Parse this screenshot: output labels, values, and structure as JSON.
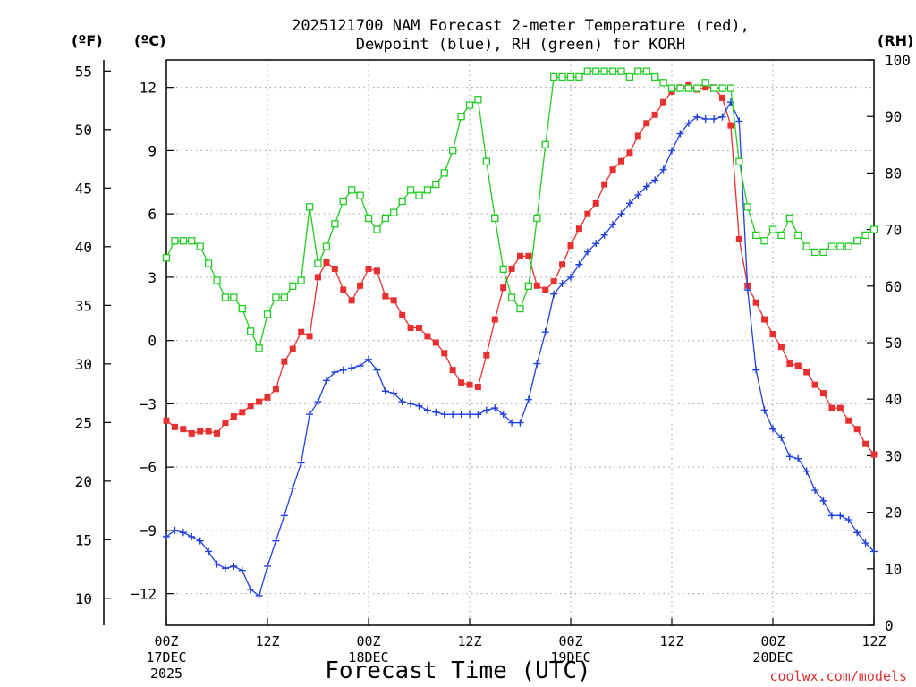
{
  "chart_data": {
    "type": "line",
    "title_line1": "2025121700 NAM Forecast 2-meter Temperature (red),",
    "title_line2": "Dewpoint (blue), RH (green) for KORH",
    "units": {
      "degF": "(ºF)",
      "degC": "(ºC)",
      "rh": "(RH)"
    },
    "xlabel": "Forecast Time (UTC)",
    "credit": "coolwx.com/models",
    "x_hours_range": [
      0,
      84
    ],
    "y_degC_range": [
      -13.5,
      13.3
    ],
    "y_rh_range": [
      0,
      100
    ],
    "y_degF_ticks": [
      "55",
      "50",
      "45",
      "40",
      "35",
      "30",
      "25",
      "20",
      "15",
      "10"
    ],
    "y_degC_ticks": [
      "12",
      "9",
      "6",
      "3",
      "0",
      "−3",
      "−6",
      "−9",
      "−12"
    ],
    "y_rh_ticks": [
      "100",
      "90",
      "80",
      "70",
      "60",
      "50",
      "40",
      "30",
      "20",
      "10",
      "0"
    ],
    "x_ticks": [
      {
        "h": 0,
        "label": "00Z",
        "sub1": "17DEC",
        "sub2": "2025"
      },
      {
        "h": 12,
        "label": "12Z",
        "sub1": "",
        "sub2": ""
      },
      {
        "h": 24,
        "label": "00Z",
        "sub1": "18DEC",
        "sub2": ""
      },
      {
        "h": 36,
        "label": "12Z",
        "sub1": "",
        "sub2": ""
      },
      {
        "h": 48,
        "label": "00Z",
        "sub1": "19DEC",
        "sub2": ""
      },
      {
        "h": 60,
        "label": "12Z",
        "sub1": "",
        "sub2": ""
      },
      {
        "h": 72,
        "label": "00Z",
        "sub1": "20DEC",
        "sub2": ""
      },
      {
        "h": 84,
        "label": "12Z",
        "sub1": "",
        "sub2": ""
      }
    ],
    "x_hours": [
      0,
      1,
      2,
      3,
      4,
      5,
      6,
      7,
      8,
      9,
      10,
      11,
      12,
      13,
      14,
      15,
      16,
      17,
      18,
      19,
      20,
      21,
      22,
      23,
      24,
      25,
      26,
      27,
      28,
      29,
      30,
      31,
      32,
      33,
      34,
      35,
      36,
      37,
      38,
      39,
      40,
      41,
      42,
      43,
      44,
      45,
      46,
      47,
      48,
      49,
      50,
      51,
      52,
      53,
      54,
      55,
      56,
      57,
      58,
      59,
      60,
      61,
      62,
      63,
      64,
      65,
      66,
      67,
      68,
      69,
      70,
      71,
      72,
      73,
      74,
      75,
      76,
      77,
      78,
      79,
      80,
      81,
      82,
      83,
      84
    ],
    "series": [
      {
        "name": "Temperature",
        "color": "#e83030",
        "marker": "filled-square",
        "axis": "degC",
        "values": [
          -3.8,
          -4.1,
          -4.2,
          -4.4,
          -4.3,
          -4.3,
          -4.4,
          -3.9,
          -3.6,
          -3.4,
          -3.1,
          -2.9,
          -2.7,
          -2.3,
          -1.0,
          -0.4,
          0.4,
          0.2,
          3.0,
          3.7,
          3.4,
          2.4,
          1.9,
          2.6,
          3.4,
          3.3,
          2.1,
          1.9,
          1.2,
          0.6,
          0.6,
          0.2,
          -0.1,
          -0.6,
          -1.4,
          -2.0,
          -2.1,
          -2.2,
          -0.7,
          1.0,
          2.5,
          3.4,
          4.0,
          4.0,
          2.6,
          2.4,
          2.8,
          3.6,
          4.5,
          5.3,
          6.0,
          6.5,
          7.4,
          8.1,
          8.5,
          8.9,
          9.7,
          10.3,
          10.7,
          11.3,
          11.8,
          12.0,
          12.1,
          11.9,
          12.0,
          12.0,
          11.5,
          10.2,
          4.8,
          2.6,
          1.8,
          1.0,
          0.3,
          -0.3,
          -1.1,
          -1.2,
          -1.5,
          -2.1,
          -2.5,
          -3.2,
          -3.2,
          -3.8,
          -4.2,
          -4.9,
          -5.4
        ]
      },
      {
        "name": "Dewpoint",
        "color": "#2040e0",
        "marker": "plus",
        "axis": "degC",
        "values": [
          -9.3,
          -9.0,
          -9.1,
          -9.3,
          -9.5,
          -10.0,
          -10.6,
          -10.8,
          -10.7,
          -10.9,
          -11.8,
          -12.1,
          -10.7,
          -9.5,
          -8.3,
          -7.0,
          -5.8,
          -3.5,
          -2.9,
          -1.9,
          -1.5,
          -1.4,
          -1.3,
          -1.2,
          -0.9,
          -1.4,
          -2.4,
          -2.5,
          -2.9,
          -3.0,
          -3.1,
          -3.3,
          -3.4,
          -3.5,
          -3.5,
          -3.5,
          -3.5,
          -3.5,
          -3.3,
          -3.2,
          -3.5,
          -3.9,
          -3.9,
          -2.8,
          -1.1,
          0.4,
          2.2,
          2.7,
          3.0,
          3.6,
          4.2,
          4.6,
          5.0,
          5.5,
          6.0,
          6.5,
          6.9,
          7.3,
          7.6,
          8.1,
          9.0,
          9.8,
          10.3,
          10.6,
          10.5,
          10.5,
          10.6,
          11.3,
          10.4,
          2.4,
          -1.4,
          -3.3,
          -4.2,
          -4.6,
          -5.5,
          -5.6,
          -6.2,
          -7.1,
          -7.6,
          -8.3,
          -8.3,
          -8.5,
          -9.1,
          -9.6,
          -10.0
        ]
      },
      {
        "name": "RH",
        "color": "#22cc22",
        "marker": "open-square",
        "axis": "rh",
        "values": [
          65,
          68,
          68,
          68,
          67,
          64,
          61,
          58,
          58,
          56,
          52,
          49,
          55,
          58,
          58,
          60,
          61,
          74,
          64,
          67,
          71,
          75,
          77,
          76,
          72,
          70,
          72,
          73,
          75,
          77,
          76,
          77,
          78,
          80,
          84,
          90,
          92,
          93,
          82,
          72,
          63,
          58,
          56,
          60,
          72,
          85,
          97,
          97,
          97,
          97,
          98,
          98,
          98,
          98,
          98,
          97,
          98,
          98,
          97,
          96,
          95,
          95,
          95,
          95,
          96,
          95,
          95,
          95,
          82,
          74,
          69,
          68,
          70,
          69,
          72,
          69,
          67,
          66,
          66,
          67,
          67,
          67,
          68,
          69,
          70
        ]
      }
    ]
  }
}
